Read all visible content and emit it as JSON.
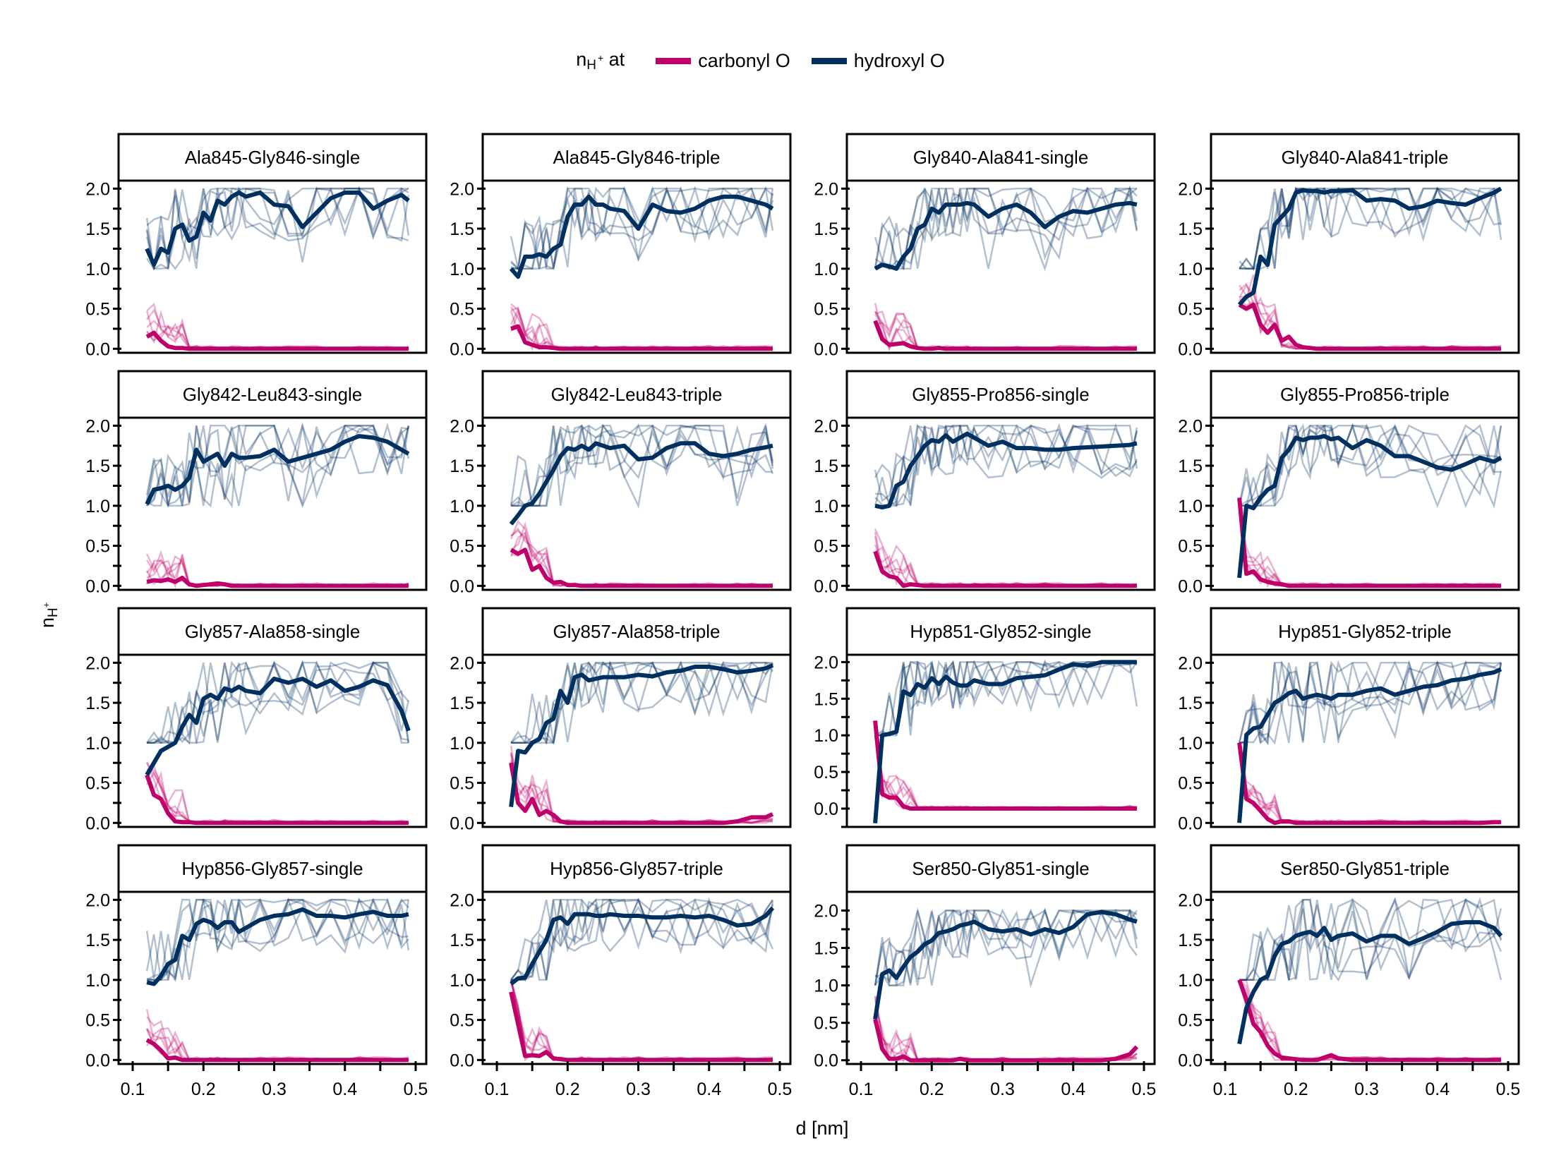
{
  "legend": {
    "title_main": "n",
    "title_sub": "H",
    "title_sup": "+",
    "title_suffix": "at",
    "items": [
      {
        "label": "carbonyl O",
        "color": "#c0006a"
      },
      {
        "label": "hydroxyl O",
        "color": "#00305f"
      }
    ]
  },
  "axes": {
    "xlabel": "d [nm]",
    "ylabel_main": "n",
    "ylabel_sub": "H",
    "ylabel_sup": "+"
  },
  "chart_data": {
    "type": "line",
    "layout": "facet-grid 4x4",
    "xlabel": "d [nm]",
    "ylabel": "n_H+",
    "xlim": [
      0.08,
      0.515
    ],
    "xticks": [
      0.1,
      0.2,
      0.3,
      0.4,
      0.5
    ],
    "xtick_labels": [
      "0.1",
      "0.2",
      "0.3",
      "0.4",
      "0.5"
    ],
    "yticks": [
      0.0,
      0.5,
      1.0,
      1.5,
      2.0
    ],
    "ytick_labels": [
      "0.0",
      "0.5",
      "1.0",
      "1.5",
      "2.0"
    ],
    "legend_position": "top-center",
    "colors": {
      "carbonyl": "#c0006a",
      "hydroxyl": "#00305f"
    },
    "x": [
      0.12,
      0.13,
      0.14,
      0.15,
      0.16,
      0.17,
      0.18,
      0.19,
      0.2,
      0.21,
      0.22,
      0.23,
      0.24,
      0.25,
      0.26,
      0.28,
      0.3,
      0.32,
      0.34,
      0.36,
      0.38,
      0.4,
      0.42,
      0.44,
      0.46,
      0.48,
      0.49
    ],
    "panels": [
      {
        "title": "Ala845-Gly846-single",
        "ylim": [
          -0.05,
          2.1
        ],
        "hydroxyl_mean": [
          1.25,
          1.05,
          1.25,
          1.2,
          1.5,
          1.55,
          1.35,
          1.4,
          1.7,
          1.6,
          1.85,
          1.8,
          1.9,
          1.95,
          1.9,
          1.95,
          1.8,
          1.78,
          1.52,
          1.7,
          1.88,
          1.95,
          1.95,
          1.75,
          1.85,
          1.92,
          1.85
        ],
        "carbonyl_mean": [
          0.15,
          0.2,
          0.1,
          0.03,
          0.01,
          0.01,
          0.0,
          0.0,
          0.0,
          0.0,
          0.0,
          0.0,
          0.0,
          0.0,
          0.0,
          0.0,
          0.0,
          0.0,
          0.0,
          0.0,
          0.0,
          0.0,
          0.0,
          0.0,
          0.0,
          0.0,
          0.0
        ]
      },
      {
        "title": "Ala845-Gly846-triple",
        "ylim": [
          -0.05,
          2.1
        ],
        "hydroxyl_mean": [
          1.0,
          0.9,
          1.15,
          1.15,
          1.18,
          1.15,
          1.25,
          1.3,
          1.65,
          1.8,
          1.8,
          1.9,
          1.8,
          1.8,
          1.75,
          1.72,
          1.5,
          1.8,
          1.72,
          1.7,
          1.75,
          1.85,
          1.9,
          1.9,
          1.85,
          1.8,
          1.75
        ],
        "carbonyl_mean": [
          0.25,
          0.28,
          0.08,
          0.05,
          0.02,
          0.02,
          0.01,
          0.0,
          0.0,
          0.0,
          0.0,
          0.0,
          0.0,
          0.0,
          0.0,
          0.0,
          0.0,
          0.0,
          0.0,
          0.0,
          0.0,
          0.0,
          0.0,
          0.0,
          0.0,
          0.0,
          0.0
        ]
      },
      {
        "title": "Gly840-Ala841-single",
        "ylim": [
          -0.05,
          2.1
        ],
        "hydroxyl_mean": [
          1.0,
          1.05,
          1.03,
          1.0,
          1.15,
          1.25,
          1.5,
          1.55,
          1.75,
          1.7,
          1.8,
          1.8,
          1.8,
          1.82,
          1.8,
          1.65,
          1.75,
          1.8,
          1.7,
          1.52,
          1.65,
          1.72,
          1.7,
          1.75,
          1.8,
          1.82,
          1.8
        ],
        "carbonyl_mean": [
          0.35,
          0.12,
          0.05,
          0.06,
          0.07,
          0.03,
          0.01,
          0.0,
          0.0,
          0.01,
          0.0,
          0.0,
          0.0,
          0.0,
          0.0,
          0.0,
          0.0,
          0.0,
          0.0,
          0.0,
          0.0,
          0.0,
          0.0,
          0.0,
          0.0,
          0.0,
          0.0
        ]
      },
      {
        "title": "Gly840-Ala841-triple",
        "ylim": [
          -0.05,
          2.1
        ],
        "hydroxyl_mean": [
          0.55,
          0.65,
          0.7,
          1.15,
          1.05,
          1.55,
          1.65,
          1.75,
          1.95,
          1.98,
          1.97,
          1.97,
          1.95,
          1.97,
          1.97,
          1.98,
          1.85,
          1.87,
          1.85,
          1.75,
          1.78,
          1.85,
          1.82,
          1.8,
          1.88,
          1.95,
          2.0
        ],
        "carbonyl_mean": [
          0.55,
          0.5,
          0.55,
          0.3,
          0.2,
          0.3,
          0.1,
          0.15,
          0.05,
          0.02,
          0.01,
          0.0,
          0.0,
          0.0,
          0.0,
          0.0,
          0.0,
          0.0,
          0.0,
          0.0,
          0.0,
          0.0,
          0.0,
          0.0,
          0.0,
          0.0,
          0.0
        ]
      },
      {
        "title": "Gly842-Leu843-single",
        "ylim": [
          -0.05,
          2.1
        ],
        "hydroxyl_mean": [
          1.02,
          1.2,
          1.22,
          1.25,
          1.2,
          1.25,
          1.35,
          1.7,
          1.55,
          1.6,
          1.65,
          1.5,
          1.65,
          1.6,
          1.6,
          1.62,
          1.7,
          1.55,
          1.6,
          1.65,
          1.7,
          1.8,
          1.87,
          1.85,
          1.8,
          1.7,
          1.65
        ],
        "carbonyl_mean": [
          0.05,
          0.07,
          0.06,
          0.08,
          0.05,
          0.1,
          0.02,
          0.0,
          0.01,
          0.02,
          0.03,
          0.02,
          0.0,
          0.0,
          0.0,
          0.0,
          0.0,
          0.0,
          0.0,
          0.0,
          0.0,
          0.0,
          0.0,
          0.0,
          0.0,
          0.0,
          0.0
        ]
      },
      {
        "title": "Gly842-Leu843-triple",
        "ylim": [
          -0.05,
          2.1
        ],
        "hydroxyl_mean": [
          0.77,
          0.88,
          1.0,
          1.03,
          1.15,
          1.3,
          1.45,
          1.62,
          1.72,
          1.7,
          1.75,
          1.7,
          1.78,
          1.75,
          1.72,
          1.75,
          1.58,
          1.6,
          1.72,
          1.78,
          1.78,
          1.65,
          1.62,
          1.65,
          1.7,
          1.73,
          1.75
        ],
        "carbonyl_mean": [
          0.45,
          0.4,
          0.45,
          0.2,
          0.25,
          0.1,
          0.04,
          0.05,
          0.01,
          0.01,
          0.0,
          0.0,
          0.0,
          0.0,
          0.0,
          0.0,
          0.0,
          0.0,
          0.0,
          0.0,
          0.0,
          0.0,
          0.0,
          0.0,
          0.0,
          0.0,
          0.0
        ]
      },
      {
        "title": "Gly855-Pro856-single",
        "ylim": [
          -0.05,
          2.1
        ],
        "hydroxyl_mean": [
          1.0,
          0.98,
          1.0,
          1.25,
          1.3,
          1.5,
          1.62,
          1.75,
          1.82,
          1.8,
          1.88,
          1.8,
          1.85,
          1.9,
          1.85,
          1.75,
          1.8,
          1.72,
          1.72,
          1.7,
          1.7,
          1.72,
          1.73,
          1.74,
          1.75,
          1.76,
          1.78
        ],
        "carbonyl_mean": [
          0.43,
          0.18,
          0.12,
          0.1,
          0.0,
          0.02,
          0.01,
          0.0,
          0.0,
          0.0,
          0.0,
          0.0,
          0.0,
          0.0,
          0.0,
          0.0,
          0.0,
          0.0,
          0.0,
          0.0,
          0.0,
          0.0,
          0.0,
          0.0,
          0.0,
          0.0,
          0.0
        ]
      },
      {
        "title": "Gly855-Pro856-triple",
        "ylim": [
          -0.05,
          2.1
        ],
        "hydroxyl_mean": [
          0.1,
          1.0,
          0.97,
          1.1,
          1.2,
          1.25,
          1.6,
          1.7,
          1.85,
          1.82,
          1.85,
          1.85,
          1.87,
          1.83,
          1.85,
          1.72,
          1.82,
          1.75,
          1.62,
          1.62,
          1.55,
          1.48,
          1.45,
          1.52,
          1.6,
          1.55,
          1.6
        ],
        "carbonyl_mean": [
          1.1,
          0.15,
          0.18,
          0.08,
          0.05,
          0.03,
          0.02,
          0.0,
          0.0,
          0.0,
          0.0,
          0.0,
          0.0,
          0.0,
          0.0,
          0.0,
          0.0,
          0.0,
          0.0,
          0.0,
          0.0,
          0.0,
          0.0,
          0.0,
          0.0,
          0.0,
          0.0
        ]
      },
      {
        "title": "Gly857-Ala858-single",
        "ylim": [
          -0.05,
          2.1
        ],
        "hydroxyl_mean": [
          0.6,
          0.75,
          0.9,
          0.95,
          1.0,
          1.2,
          1.35,
          1.25,
          1.55,
          1.6,
          1.55,
          1.68,
          1.65,
          1.7,
          1.65,
          1.62,
          1.8,
          1.75,
          1.8,
          1.7,
          1.78,
          1.65,
          1.7,
          1.78,
          1.72,
          1.4,
          1.15
        ],
        "carbonyl_mean": [
          0.6,
          0.35,
          0.3,
          0.12,
          0.02,
          0.01,
          0.01,
          0.0,
          0.0,
          0.0,
          0.0,
          0.0,
          0.0,
          0.0,
          0.0,
          0.0,
          0.0,
          0.0,
          0.0,
          0.0,
          0.0,
          0.0,
          0.0,
          0.0,
          0.0,
          0.0,
          0.0
        ]
      },
      {
        "title": "Gly857-Ala858-triple",
        "ylim": [
          -0.05,
          2.1
        ],
        "hydroxyl_mean": [
          0.2,
          0.9,
          0.88,
          1.0,
          1.05,
          1.25,
          1.3,
          1.65,
          1.5,
          1.82,
          1.85,
          1.78,
          1.8,
          1.82,
          1.82,
          1.82,
          1.85,
          1.83,
          1.88,
          1.9,
          1.95,
          1.95,
          1.92,
          1.88,
          1.9,
          1.93,
          1.97
        ],
        "carbonyl_mean": [
          0.75,
          0.25,
          0.15,
          0.3,
          0.1,
          0.15,
          0.1,
          0.02,
          0.0,
          0.0,
          0.0,
          0.0,
          0.0,
          0.0,
          0.0,
          0.0,
          0.0,
          0.0,
          0.0,
          0.0,
          0.0,
          0.0,
          0.0,
          0.02,
          0.07,
          0.07,
          0.11
        ]
      },
      {
        "title": "Hyp851-Gly852-single",
        "ylim": [
          -0.25,
          2.1
        ],
        "hydroxyl_mean": [
          -0.2,
          1.0,
          1.02,
          1.05,
          1.6,
          1.55,
          1.7,
          1.65,
          1.78,
          1.7,
          1.8,
          1.72,
          1.68,
          1.68,
          1.75,
          1.7,
          1.7,
          1.78,
          1.8,
          1.82,
          1.9,
          1.97,
          1.95,
          2.0,
          2.0,
          2.0,
          2.0
        ],
        "carbonyl_mean": [
          1.2,
          0.2,
          0.15,
          0.15,
          0.03,
          0.0,
          0.0,
          0.0,
          0.0,
          0.0,
          0.0,
          0.0,
          0.0,
          0.0,
          0.0,
          0.0,
          0.0,
          0.0,
          0.0,
          0.0,
          0.0,
          0.0,
          0.0,
          0.0,
          0.0,
          0.0,
          0.0
        ]
      },
      {
        "title": "Hyp851-Gly852-triple",
        "ylim": [
          -0.05,
          2.1
        ],
        "hydroxyl_mean": [
          0.0,
          1.1,
          1.18,
          1.2,
          1.35,
          1.5,
          1.55,
          1.62,
          1.65,
          1.55,
          1.58,
          1.6,
          1.58,
          1.55,
          1.6,
          1.6,
          1.65,
          1.68,
          1.6,
          1.65,
          1.7,
          1.72,
          1.78,
          1.8,
          1.85,
          1.88,
          1.92
        ],
        "carbonyl_mean": [
          1.0,
          0.3,
          0.25,
          0.15,
          0.05,
          0.0,
          0.02,
          0.02,
          0.0,
          0.0,
          0.0,
          0.0,
          0.0,
          0.0,
          0.0,
          0.0,
          0.0,
          0.0,
          0.0,
          0.0,
          0.0,
          0.0,
          0.0,
          0.0,
          0.0,
          0.01,
          0.01
        ]
      },
      {
        "title": "Hyp856-Gly857-single",
        "ylim": [
          -0.05,
          2.1
        ],
        "hydroxyl_mean": [
          0.97,
          0.95,
          1.05,
          1.2,
          1.25,
          1.55,
          1.5,
          1.7,
          1.75,
          1.72,
          1.65,
          1.72,
          1.72,
          1.6,
          1.65,
          1.75,
          1.8,
          1.82,
          1.88,
          1.8,
          1.8,
          1.78,
          1.82,
          1.85,
          1.8,
          1.8,
          1.82
        ],
        "carbonyl_mean": [
          0.25,
          0.2,
          0.12,
          0.02,
          0.03,
          0.0,
          0.0,
          0.0,
          0.0,
          0.0,
          0.0,
          0.0,
          0.0,
          0.0,
          0.0,
          0.0,
          0.0,
          0.0,
          0.0,
          0.0,
          0.0,
          0.0,
          0.0,
          0.0,
          0.0,
          0.0,
          0.0
        ]
      },
      {
        "title": "Hyp856-Gly857-triple",
        "ylim": [
          -0.05,
          2.1
        ],
        "hydroxyl_mean": [
          0.95,
          1.02,
          1.03,
          1.2,
          1.35,
          1.5,
          1.75,
          1.78,
          1.7,
          1.82,
          1.82,
          1.82,
          1.8,
          1.8,
          1.82,
          1.8,
          1.8,
          1.78,
          1.78,
          1.8,
          1.78,
          1.8,
          1.75,
          1.68,
          1.7,
          1.8,
          1.9
        ],
        "carbonyl_mean": [
          0.85,
          0.45,
          0.05,
          0.06,
          0.05,
          0.1,
          0.02,
          0.01,
          0.0,
          0.0,
          0.0,
          0.0,
          0.0,
          0.0,
          0.0,
          0.0,
          0.0,
          0.0,
          0.0,
          0.0,
          0.0,
          0.0,
          0.0,
          0.0,
          0.0,
          0.0,
          0.0
        ]
      },
      {
        "title": "Ser850-Gly851-single",
        "ylim": [
          -0.05,
          2.25
        ],
        "hydroxyl_mean": [
          0.55,
          1.15,
          1.2,
          1.1,
          1.25,
          1.38,
          1.45,
          1.55,
          1.6,
          1.7,
          1.72,
          1.75,
          1.8,
          1.82,
          1.85,
          1.75,
          1.72,
          1.75,
          1.68,
          1.75,
          1.7,
          1.78,
          1.95,
          1.98,
          1.95,
          1.88,
          1.85
        ],
        "carbonyl_mean": [
          0.55,
          0.15,
          0.02,
          0.02,
          0.05,
          0.0,
          0.0,
          0.0,
          0.0,
          0.0,
          0.0,
          0.0,
          0.02,
          0.0,
          0.0,
          0.0,
          0.0,
          0.0,
          0.0,
          0.0,
          0.0,
          0.0,
          0.0,
          0.0,
          0.02,
          0.08,
          0.18
        ]
      },
      {
        "title": "Ser850-Gly851-triple",
        "ylim": [
          -0.05,
          2.1
        ],
        "hydroxyl_mean": [
          0.2,
          0.65,
          0.85,
          1.0,
          1.05,
          1.3,
          1.45,
          1.48,
          1.55,
          1.58,
          1.6,
          1.55,
          1.65,
          1.5,
          1.55,
          1.58,
          1.48,
          1.55,
          1.55,
          1.45,
          1.52,
          1.6,
          1.7,
          1.72,
          1.72,
          1.65,
          1.55
        ],
        "carbonyl_mean": [
          1.0,
          0.75,
          0.45,
          0.35,
          0.18,
          0.08,
          0.03,
          0.02,
          0.01,
          0.0,
          0.0,
          0.0,
          0.03,
          0.06,
          0.02,
          0.0,
          0.0,
          0.0,
          0.0,
          0.0,
          0.0,
          0.0,
          0.0,
          0.0,
          0.0,
          0.0,
          0.0
        ]
      }
    ]
  }
}
